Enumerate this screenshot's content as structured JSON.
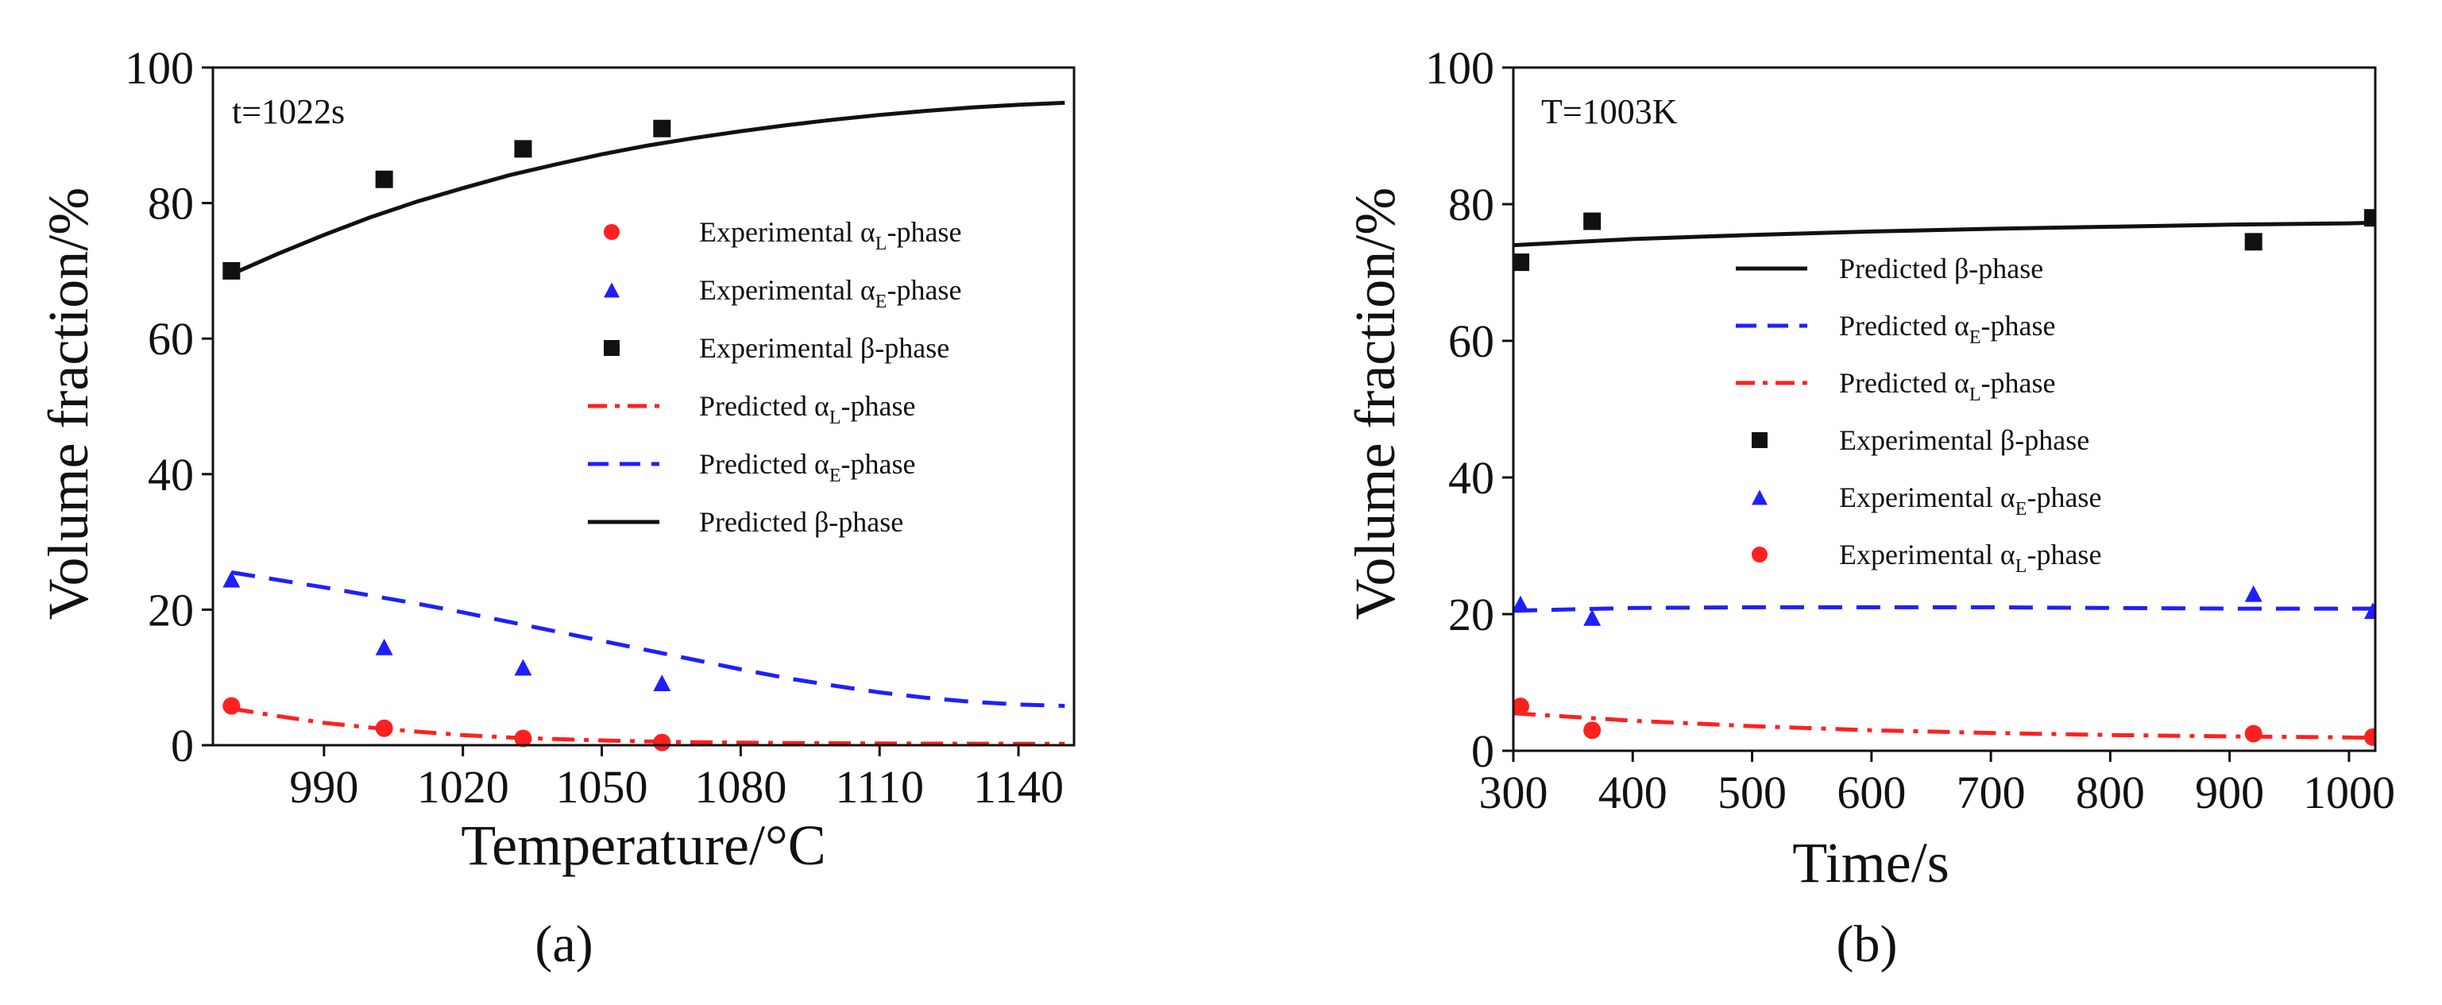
{
  "chart_data": [
    {
      "type": "scatter",
      "panel_label": "(a)",
      "annotation": "t=1022s",
      "xlabel": "Temperature/°C",
      "ylabel": "Volume fraction/%",
      "xlim": [
        966,
        1152
      ],
      "ylim": [
        0,
        100
      ],
      "xticks": [
        990,
        1020,
        1050,
        1080,
        1110,
        1140
      ],
      "yticks": [
        0,
        20,
        40,
        60,
        80,
        100
      ],
      "legend_position": "center-right",
      "series": [
        {
          "name": "Experimental αL-phase",
          "label_main": "Experimental α",
          "label_sub": "L",
          "label_tail": "-phase",
          "kind": "marker",
          "marker": "circle",
          "color": "#ff2020",
          "x": [
            970,
            1003,
            1033,
            1063
          ],
          "y": [
            5.8,
            2.5,
            1.0,
            0.4
          ]
        },
        {
          "name": "Experimental αE-phase",
          "label_main": "Experimental α",
          "label_sub": "E",
          "label_tail": "-phase",
          "kind": "marker",
          "marker": "triangle",
          "color": "#1f1fff",
          "x": [
            970,
            1003,
            1033,
            1063
          ],
          "y": [
            24.5,
            14.5,
            11.5,
            9.2
          ]
        },
        {
          "name": "Experimental β-phase",
          "label_main": "Experimental β-phase",
          "label_sub": "",
          "label_tail": "",
          "kind": "marker",
          "marker": "square",
          "color": "#111111",
          "x": [
            970,
            1003,
            1033,
            1063
          ],
          "y": [
            70,
            83.5,
            88,
            91
          ]
        },
        {
          "name": "Predicted αL-phase",
          "label_main": "Predicted α",
          "label_sub": "L",
          "label_tail": "-phase",
          "kind": "line",
          "dash": "dashdot",
          "color": "#ff2020",
          "x": [
            970,
            980,
            990,
            1000,
            1010,
            1020,
            1030,
            1040,
            1050,
            1060,
            1070,
            1080,
            1090,
            1100,
            1110,
            1120,
            1130,
            1140,
            1150
          ],
          "y": [
            5.4,
            4.3,
            3.3,
            2.6,
            2.0,
            1.5,
            1.15,
            0.9,
            0.7,
            0.55,
            0.45,
            0.38,
            0.33,
            0.29,
            0.26,
            0.24,
            0.22,
            0.21,
            0.2
          ]
        },
        {
          "name": "Predicted αE-phase",
          "label_main": "Predicted α",
          "label_sub": "E",
          "label_tail": "-phase",
          "kind": "line",
          "dash": "dashed",
          "color": "#1f1fff",
          "x": [
            970,
            980,
            990,
            1000,
            1010,
            1020,
            1030,
            1040,
            1050,
            1060,
            1070,
            1080,
            1090,
            1100,
            1110,
            1120,
            1130,
            1140,
            1150
          ],
          "y": [
            25.5,
            24.4,
            23.3,
            22.1,
            20.9,
            19.6,
            18.2,
            16.8,
            15.4,
            14.0,
            12.6,
            11.2,
            9.9,
            8.8,
            7.8,
            7.0,
            6.4,
            6.0,
            5.8
          ]
        },
        {
          "name": "Predicted β-phase",
          "label_main": "Predicted β-phase",
          "label_sub": "",
          "label_tail": "",
          "kind": "line",
          "dash": "solid",
          "color": "#111111",
          "x": [
            970,
            980,
            990,
            1000,
            1010,
            1020,
            1030,
            1040,
            1050,
            1060,
            1070,
            1080,
            1090,
            1100,
            1110,
            1120,
            1130,
            1140,
            1150
          ],
          "y": [
            69.5,
            72.5,
            75.3,
            77.9,
            80.2,
            82.2,
            84.1,
            85.7,
            87.2,
            88.5,
            89.6,
            90.6,
            91.5,
            92.3,
            93.0,
            93.6,
            94.1,
            94.5,
            94.8
          ]
        }
      ]
    },
    {
      "type": "scatter",
      "panel_label": "(b)",
      "annotation": "T=1003K",
      "xlabel": "Time/s",
      "ylabel": "Volume fraction/%",
      "xlim": [
        300,
        1022
      ],
      "ylim": [
        0,
        100
      ],
      "xticks": [
        300,
        400,
        500,
        600,
        700,
        800,
        900,
        1000
      ],
      "yticks": [
        0,
        20,
        40,
        60,
        80,
        100
      ],
      "legend_position": "center-right",
      "series": [
        {
          "name": "Predicted β-phase",
          "label_main": "Predicted β-phase",
          "label_sub": "",
          "label_tail": "",
          "kind": "line",
          "dash": "solid",
          "color": "#111111",
          "x": [
            300,
            400,
            500,
            600,
            700,
            800,
            900,
            1000,
            1022
          ],
          "y": [
            74.0,
            74.9,
            75.5,
            76.0,
            76.4,
            76.7,
            77.0,
            77.2,
            77.3
          ]
        },
        {
          "name": "Predicted αE-phase",
          "label_main": "Predicted α",
          "label_sub": "E",
          "label_tail": "-phase",
          "kind": "line",
          "dash": "dashed",
          "color": "#1f1fff",
          "x": [
            300,
            400,
            500,
            600,
            700,
            800,
            900,
            1000,
            1022
          ],
          "y": [
            20.5,
            20.9,
            21.0,
            21.0,
            21.0,
            20.9,
            20.8,
            20.8,
            20.8
          ]
        },
        {
          "name": "Predicted αL-phase",
          "label_main": "Predicted α",
          "label_sub": "L",
          "label_tail": "-phase",
          "kind": "line",
          "dash": "dashdot",
          "color": "#ff2020",
          "x": [
            300,
            400,
            500,
            600,
            700,
            800,
            900,
            1000,
            1022
          ],
          "y": [
            5.5,
            4.4,
            3.6,
            3.0,
            2.6,
            2.3,
            2.1,
            1.95,
            1.9
          ]
        },
        {
          "name": "Experimental β-phase",
          "label_main": "Experimental β-phase",
          "label_sub": "",
          "label_tail": "",
          "kind": "marker",
          "marker": "square",
          "color": "#111111",
          "x": [
            306,
            366,
            920,
            1020
          ],
          "y": [
            71.5,
            77.5,
            74.5,
            78
          ]
        },
        {
          "name": "Experimental αE-phase",
          "label_main": "Experimental α",
          "label_sub": "E",
          "label_tail": "-phase",
          "kind": "marker",
          "marker": "triangle",
          "color": "#1f1fff",
          "x": [
            306,
            366,
            920,
            1020
          ],
          "y": [
            21.5,
            19.5,
            23,
            20.5
          ]
        },
        {
          "name": "Experimental αL-phase",
          "label_main": "Experimental α",
          "label_sub": "L",
          "label_tail": "-phase",
          "kind": "marker",
          "marker": "circle",
          "color": "#ff2020",
          "x": [
            306,
            366,
            920,
            1020
          ],
          "y": [
            6.5,
            3.0,
            2.5,
            2.0
          ]
        }
      ]
    }
  ]
}
